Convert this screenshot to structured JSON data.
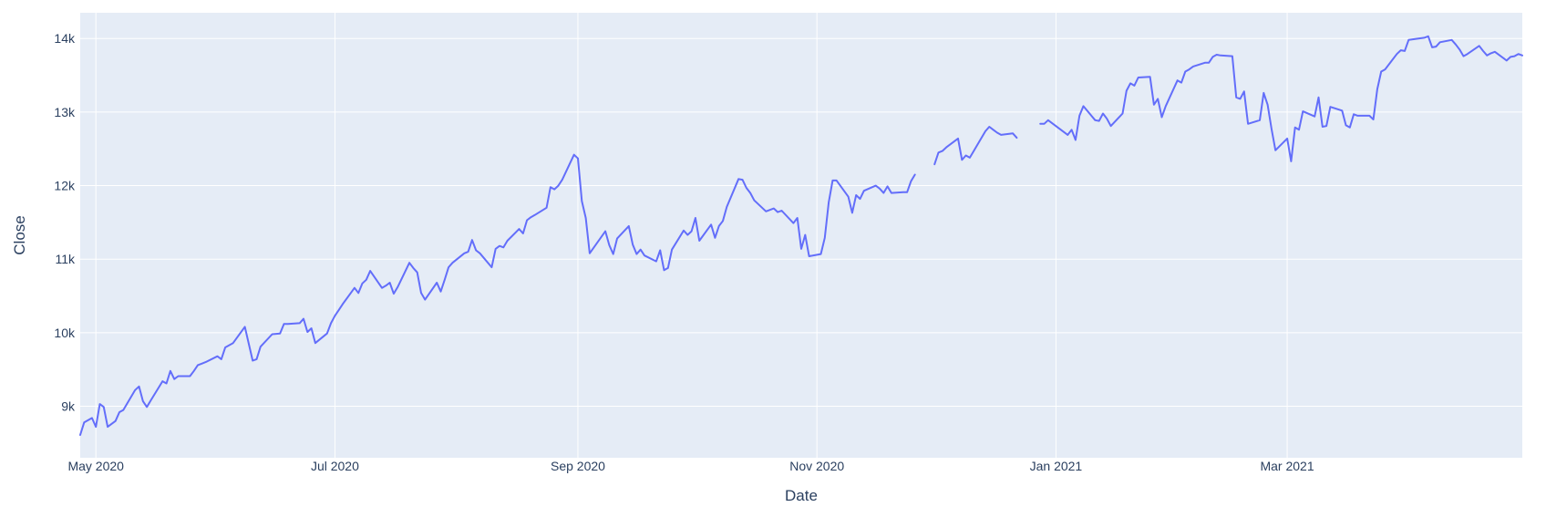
{
  "chart_data": {
    "type": "line",
    "xlabel": "Date",
    "ylabel": "Close",
    "xlim": [
      "2020-04-27",
      "2021-04-30"
    ],
    "ylim": [
      8300,
      14350
    ],
    "x_ticks": [
      {
        "date": "2020-05-01",
        "label": "May 2020"
      },
      {
        "date": "2020-07-01",
        "label": "Jul 2020"
      },
      {
        "date": "2020-09-01",
        "label": "Sep 2020"
      },
      {
        "date": "2020-11-01",
        "label": "Nov 2020"
      },
      {
        "date": "2021-01-01",
        "label": "Jan 2021"
      },
      {
        "date": "2021-03-01",
        "label": "Mar 2021"
      }
    ],
    "y_ticks": [
      {
        "value": 9000,
        "label": "9k"
      },
      {
        "value": 10000,
        "label": "10k"
      },
      {
        "value": 11000,
        "label": "11k"
      },
      {
        "value": 12000,
        "label": "12k"
      },
      {
        "value": 13000,
        "label": "13k"
      },
      {
        "value": 14000,
        "label": "14k"
      }
    ],
    "grid": true,
    "colors": {
      "plot_bg": "#e5ecf6",
      "line": "#636efa",
      "grid": "#ffffff",
      "text": "#2a3f5f"
    },
    "series": [
      {
        "segments": [
          {
            "x": [
              "2020-04-27",
              "2020-04-28",
              "2020-04-30",
              "2020-05-01",
              "2020-05-02",
              "2020-05-03",
              "2020-05-04",
              "2020-05-06",
              "2020-05-07",
              "2020-05-08",
              "2020-05-11",
              "2020-05-12",
              "2020-05-13",
              "2020-05-14",
              "2020-05-15",
              "2020-05-18",
              "2020-05-19",
              "2020-05-20",
              "2020-05-21",
              "2020-05-22",
              "2020-05-25",
              "2020-05-26",
              "2020-05-27",
              "2020-05-28",
              "2020-05-29",
              "2020-06-01",
              "2020-06-02",
              "2020-06-03",
              "2020-06-05",
              "2020-06-08",
              "2020-06-10",
              "2020-06-11",
              "2020-06-12",
              "2020-06-15",
              "2020-06-17",
              "2020-06-18",
              "2020-06-19",
              "2020-06-22",
              "2020-06-23",
              "2020-06-24",
              "2020-06-25",
              "2020-06-26",
              "2020-06-29",
              "2020-06-30",
              "2020-07-01",
              "2020-07-02",
              "2020-07-03",
              "2020-07-06",
              "2020-07-07",
              "2020-07-08",
              "2020-07-09",
              "2020-07-10",
              "2020-07-13",
              "2020-07-14",
              "2020-07-15",
              "2020-07-16",
              "2020-07-17",
              "2020-07-20",
              "2020-07-21",
              "2020-07-22",
              "2020-07-23",
              "2020-07-24",
              "2020-07-27",
              "2020-07-28",
              "2020-07-29",
              "2020-07-30",
              "2020-07-31",
              "2020-08-03",
              "2020-08-04",
              "2020-08-05",
              "2020-08-06",
              "2020-08-07",
              "2020-08-10",
              "2020-08-11",
              "2020-08-12",
              "2020-08-13",
              "2020-08-14",
              "2020-08-17",
              "2020-08-18",
              "2020-08-19",
              "2020-08-20",
              "2020-08-21",
              "2020-08-24",
              "2020-08-25",
              "2020-08-26",
              "2020-08-27",
              "2020-08-28",
              "2020-08-31",
              "2020-09-01",
              "2020-09-02",
              "2020-09-03",
              "2020-09-04",
              "2020-09-08",
              "2020-09-09",
              "2020-09-10",
              "2020-09-11",
              "2020-09-14",
              "2020-09-15",
              "2020-09-16",
              "2020-09-17",
              "2020-09-18",
              "2020-09-21",
              "2020-09-22",
              "2020-09-23",
              "2020-09-24",
              "2020-09-25",
              "2020-09-28",
              "2020-09-29",
              "2020-09-30",
              "2020-10-01",
              "2020-10-02",
              "2020-10-05",
              "2020-10-06",
              "2020-10-07",
              "2020-10-08",
              "2020-10-09",
              "2020-10-12",
              "2020-10-13",
              "2020-10-14",
              "2020-10-15",
              "2020-10-16",
              "2020-10-19",
              "2020-10-20",
              "2020-10-21",
              "2020-10-22",
              "2020-10-23",
              "2020-10-26",
              "2020-10-27",
              "2020-10-28",
              "2020-10-29",
              "2020-10-30",
              "2020-11-02",
              "2020-11-03",
              "2020-11-04",
              "2020-11-05",
              "2020-11-06",
              "2020-11-09",
              "2020-11-10",
              "2020-11-11",
              "2020-11-12",
              "2020-11-13",
              "2020-11-16",
              "2020-11-17",
              "2020-11-18",
              "2020-11-19",
              "2020-11-20",
              "2020-11-23",
              "2020-11-24",
              "2020-11-25",
              "2020-11-26"
            ],
            "y": [
              8610,
              8780,
              8840,
              8720,
              9030,
              8990,
              8720,
              8800,
              8920,
              8950,
              9220,
              9270,
              9070,
              8990,
              9080,
              9340,
              9310,
              9480,
              9370,
              9410,
              9410,
              9480,
              9560,
              9580,
              9600,
              9680,
              9640,
              9800,
              9860,
              10080,
              9620,
              9640,
              9810,
              9980,
              9990,
              10120,
              10120,
              10130,
              10190,
              10010,
              10060,
              9860,
              9990,
              10130,
              10230,
              10310,
              10390,
              10610,
              10540,
              10670,
              10720,
              10840,
              10610,
              10640,
              10680,
              10530,
              10620,
              10950,
              10880,
              10820,
              10540,
              10450,
              10680,
              10560,
              10720,
              10890,
              10950,
              11080,
              11100,
              11260,
              11120,
              11080,
              10890,
              11140,
              11180,
              11160,
              11250,
              11410,
              11350,
              11530,
              11570,
              11600,
              11700,
              11980,
              11950,
              12000,
              12080,
              12420,
              12370,
              11790,
              11560,
              11080,
              11380,
              11190,
              11070,
              11280,
              11450,
              11200,
              11070,
              11130,
              11050,
              10970,
              11120,
              10850,
              10880,
              11130,
              11390,
              11330,
              11380,
              11560,
              11250,
              11470,
              11290,
              11450,
              11520,
              11710,
              12090,
              12080,
              11970,
              11900,
              11800,
              11650,
              11670,
              11690,
              11640,
              11660,
              11490,
              11560,
              11140,
              11330,
              11040,
              11070,
              11290,
              11770,
              12070,
              12070,
              11850,
              11630,
              11870,
              11820,
              11930,
              12000,
              11960,
              11900,
              11990,
              11900,
              11910,
              11910,
              12060,
              12150
            ]
          },
          {
            "x": [
              "2020-12-01",
              "2020-12-02",
              "2020-12-03",
              "2020-12-04",
              "2020-12-07",
              "2020-12-08",
              "2020-12-09",
              "2020-12-10",
              "2020-12-11",
              "2020-12-14",
              "2020-12-15",
              "2020-12-16",
              "2020-12-17",
              "2020-12-18",
              "2020-12-21",
              "2020-12-22"
            ],
            "y": [
              12290,
              12450,
              12470,
              12520,
              12640,
              12350,
              12410,
              12380,
              12470,
              12740,
              12800,
              12760,
              12720,
              12690,
              12710,
              12650
            ]
          },
          {
            "x": [
              "2020-12-28",
              "2020-12-29",
              "2020-12-30",
              "2021-01-04",
              "2021-01-05",
              "2021-01-06",
              "2021-01-07",
              "2021-01-08",
              "2021-01-11",
              "2021-01-12",
              "2021-01-13",
              "2021-01-14",
              "2021-01-15",
              "2021-01-18",
              "2021-01-19",
              "2021-01-20",
              "2021-01-21",
              "2021-01-22",
              "2021-01-25",
              "2021-01-26",
              "2021-01-27",
              "2021-01-28",
              "2021-01-29",
              "2021-02-01",
              "2021-02-02",
              "2021-02-03",
              "2021-02-04",
              "2021-02-05",
              "2021-02-08",
              "2021-02-09",
              "2021-02-10",
              "2021-02-11",
              "2021-02-12",
              "2021-02-15",
              "2021-02-16",
              "2021-02-17",
              "2021-02-18",
              "2021-02-19",
              "2021-02-22",
              "2021-02-23",
              "2021-02-24",
              "2021-02-25",
              "2021-02-26",
              "2021-03-01",
              "2021-03-02",
              "2021-03-03",
              "2021-03-04",
              "2021-03-05",
              "2021-03-08",
              "2021-03-09",
              "2021-03-10",
              "2021-03-11",
              "2021-03-12",
              "2021-03-15",
              "2021-03-16",
              "2021-03-17",
              "2021-03-18",
              "2021-03-19",
              "2021-03-22",
              "2021-03-23",
              "2021-03-24",
              "2021-03-25",
              "2021-03-26",
              "2021-03-29",
              "2021-03-30",
              "2021-03-31",
              "2021-04-01",
              "2021-04-05",
              "2021-04-06",
              "2021-04-07",
              "2021-04-08",
              "2021-04-09",
              "2021-04-12",
              "2021-04-13",
              "2021-04-14",
              "2021-04-15",
              "2021-04-16",
              "2021-04-19",
              "2021-04-20",
              "2021-04-21",
              "2021-04-22",
              "2021-04-23",
              "2021-04-26",
              "2021-04-27",
              "2021-04-28",
              "2021-04-29",
              "2021-04-30"
            ],
            "y": [
              12840,
              12840,
              12890,
              12690,
              12760,
              12620,
              12950,
              13080,
              12890,
              12880,
              12980,
              12910,
              12810,
              12980,
              13290,
              13390,
              13360,
              13470,
              13480,
              13100,
              13180,
              12930,
              13080,
              13430,
              13400,
              13550,
              13580,
              13620,
              13670,
              13670,
              13750,
              13780,
              13770,
              13760,
              13200,
              13180,
              13280,
              12840,
              12890,
              13260,
              13100,
              12770,
              12480,
              12640,
              12330,
              12790,
              12760,
              13010,
              12940,
              13200,
              12800,
              12810,
              13070,
              13020,
              12820,
              12790,
              12970,
              12950,
              12950,
              12900,
              13310,
              13550,
              13580,
              13790,
              13840,
              13830,
              13980,
              14010,
              14030,
              13880,
              13890,
              13950,
              13980,
              13920,
              13850,
              13760,
              13790,
              13900,
              13830,
              13770,
              13800,
              13820,
              13700,
              13750,
              13760,
              13790,
              13770
            ]
          }
        ]
      }
    ]
  }
}
